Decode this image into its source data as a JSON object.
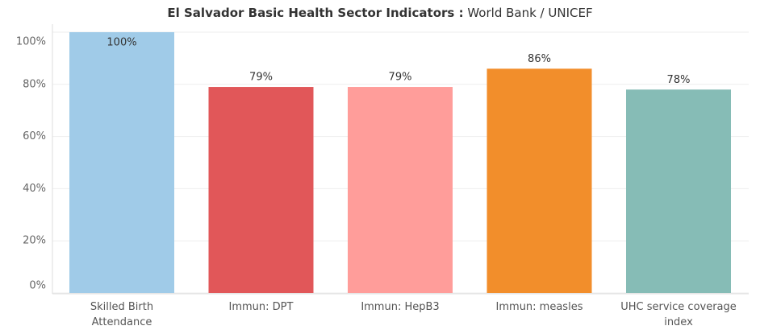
{
  "chart_data": {
    "type": "bar",
    "title": "El Salvador  Basic Health Sector Indicators :",
    "title_source": "World Bank / UNICEF",
    "categories": [
      "Skilled Birth Attendance",
      "Immun: DPT",
      "Immun: HepB3",
      "Immun: measles",
      "UHC service coverage index"
    ],
    "values": [
      100,
      79,
      79,
      86,
      78
    ],
    "value_labels": [
      "100%",
      "79%",
      "79%",
      "86%",
      "78%"
    ],
    "colors": [
      "#a0cbe8",
      "#e15759",
      "#ff9d9a",
      "#f28e2b",
      "#86bcb6"
    ],
    "ylim": [
      0,
      100
    ],
    "yticks": [
      {
        "value": 0,
        "label": "0%"
      },
      {
        "value": 20,
        "label": "20%"
      },
      {
        "value": 40,
        "label": "40%"
      },
      {
        "value": 60,
        "label": "60%"
      },
      {
        "value": 80,
        "label": "80%"
      },
      {
        "value": 100,
        "label": "100%"
      }
    ],
    "grid": true
  }
}
